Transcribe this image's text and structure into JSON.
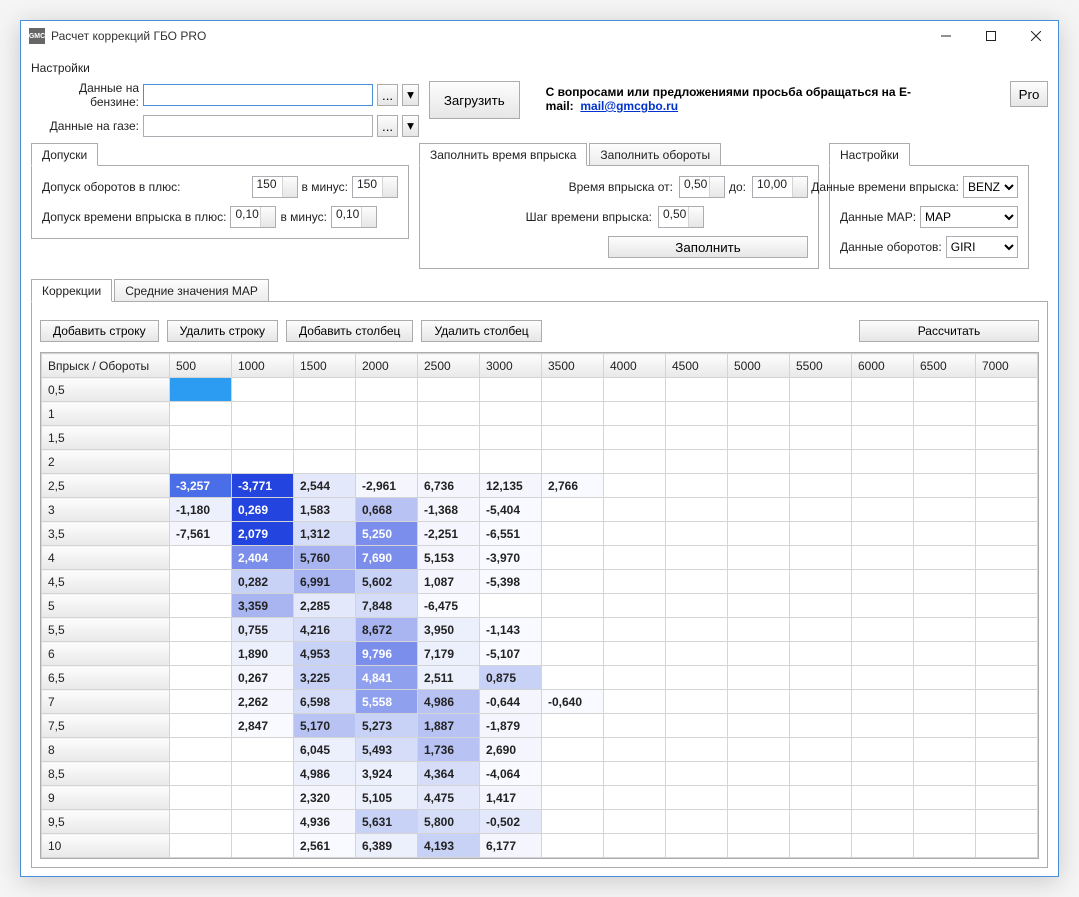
{
  "window": {
    "title": "Расчет коррекций ГБО PRO",
    "app_icon_text": "GMC"
  },
  "menu": {
    "settings": "Настройки"
  },
  "files": {
    "petrol_label": "Данные на бензине:",
    "gas_label": "Данные на газе:",
    "browse": "...",
    "load": "Загрузить"
  },
  "contact": {
    "text": "С вопросами или предложениями просьба обращаться на E-mail:",
    "email": "mail@gmcgbo.ru",
    "pro": "Pro"
  },
  "tolerance": {
    "tab": "Допуски",
    "rpm_plus_label": "Допуск оборотов в плюс:",
    "rpm_minus_label": "в минус:",
    "inj_plus_label": "Допуск времени впрыска в плюс:",
    "inj_minus_label": "в минус:",
    "rpm_plus": "150",
    "rpm_minus": "150",
    "inj_plus": "0,10",
    "inj_minus": "0,10"
  },
  "fill": {
    "tab1": "Заполнить время впрыска",
    "tab2": "Заполнить обороты",
    "from_label": "Время впрыска от:",
    "to_label": "до:",
    "step_label": "Шаг времени впрыска:",
    "from": "0,50",
    "to": "10,00",
    "step": "0,50",
    "button": "Заполнить"
  },
  "settings": {
    "tab": "Настройки",
    "inj_label": "Данные времени впрыска:",
    "map_label": "Данные MAP:",
    "rpm_label": "Данные оборотов:",
    "inj_value": "BENZ",
    "map_value": "MAP",
    "rpm_value": "GIRI"
  },
  "lower_tabs": {
    "corrections": "Коррекции",
    "map_avg": "Средние значения MAP"
  },
  "actions": {
    "add_row": "Добавить строку",
    "del_row": "Удалить строку",
    "add_col": "Добавить столбец",
    "del_col": "Удалить столбец",
    "calc": "Рассчитать"
  },
  "table": {
    "corner": "Впрыск / Обороты",
    "columns": [
      "500",
      "1000",
      "1500",
      "2000",
      "2500",
      "3000",
      "3500",
      "4000",
      "4500",
      "5000",
      "5500",
      "6000",
      "6500",
      "7000"
    ],
    "row_labels": [
      "0,5",
      "1",
      "1,5",
      "2",
      "2,5",
      "3",
      "3,5",
      "4",
      "4,5",
      "5",
      "5,5",
      "6",
      "6,5",
      "7",
      "7,5",
      "8",
      "8,5",
      "9",
      "9,5",
      "10"
    ],
    "selected_cell": {
      "row": 0,
      "col": 0
    },
    "cells": [
      [
        null,
        null,
        null,
        null,
        null,
        null,
        null,
        null,
        null,
        null,
        null,
        null,
        null,
        null
      ],
      [
        null,
        null,
        null,
        null,
        null,
        null,
        null,
        null,
        null,
        null,
        null,
        null,
        null,
        null
      ],
      [
        null,
        null,
        null,
        null,
        null,
        null,
        null,
        null,
        null,
        null,
        null,
        null,
        null,
        null
      ],
      [
        null,
        null,
        null,
        null,
        null,
        null,
        null,
        null,
        null,
        null,
        null,
        null,
        null,
        null
      ],
      [
        {
          "v": "-3,257",
          "c": "#4a6ee8",
          "t": "#fff"
        },
        {
          "v": "-3,771",
          "c": "#2444e0",
          "t": "#fff"
        },
        {
          "v": "2,544",
          "c": "#e4e8fb"
        },
        {
          "v": "-2,961",
          "c": "#f5f6fd"
        },
        {
          "v": "6,736",
          "c": "#f5f6fd"
        },
        {
          "v": "12,135",
          "c": "#f5f6fd"
        },
        {
          "v": "2,766",
          "c": "#f9faff"
        },
        null,
        null,
        null,
        null,
        null,
        null,
        null
      ],
      [
        {
          "v": "-1,180",
          "c": "#eceffc"
        },
        {
          "v": "0,269",
          "c": "#2444e0",
          "t": "#fff"
        },
        {
          "v": "1,583",
          "c": "#e4e8fb"
        },
        {
          "v": "0,668",
          "c": "#b8c3f3"
        },
        {
          "v": "-1,368",
          "c": "#f5f6fd"
        },
        {
          "v": "-5,404",
          "c": "#f9faff"
        },
        null,
        null,
        null,
        null,
        null,
        null,
        null,
        null
      ],
      [
        {
          "v": "-7,561",
          "c": "#f5f6fd"
        },
        {
          "v": "2,079",
          "c": "#2444e0",
          "t": "#fff"
        },
        {
          "v": "1,312",
          "c": "#d6ddf8"
        },
        {
          "v": "5,250",
          "c": "#7b8eec",
          "t": "#fff"
        },
        {
          "v": "-2,251",
          "c": "#f5f6fd"
        },
        {
          "v": "-6,551",
          "c": "#f9faff"
        },
        null,
        null,
        null,
        null,
        null,
        null,
        null,
        null
      ],
      [
        null,
        {
          "v": "2,404",
          "c": "#7b8eec",
          "t": "#fff"
        },
        {
          "v": "5,760",
          "c": "#a8b5f0"
        },
        {
          "v": "7,690",
          "c": "#7b8eec",
          "t": "#fff"
        },
        {
          "v": "5,153",
          "c": "#f5f6fd"
        },
        {
          "v": "-3,970",
          "c": "#f9faff"
        },
        null,
        null,
        null,
        null,
        null,
        null,
        null,
        null
      ],
      [
        null,
        {
          "v": "0,282",
          "c": "#c8d1f6"
        },
        {
          "v": "6,991",
          "c": "#a8b5f0"
        },
        {
          "v": "5,602",
          "c": "#c8d1f6"
        },
        {
          "v": "1,087",
          "c": "#f5f6fd"
        },
        {
          "v": "-5,398",
          "c": "#f9faff"
        },
        null,
        null,
        null,
        null,
        null,
        null,
        null,
        null
      ],
      [
        null,
        {
          "v": "3,359",
          "c": "#a8b5f0"
        },
        {
          "v": "2,285",
          "c": "#e4e8fb"
        },
        {
          "v": "7,848",
          "c": "#d6ddf8"
        },
        {
          "v": "-6,475",
          "c": "#f9faff"
        },
        null,
        null,
        null,
        null,
        null,
        null,
        null,
        null,
        null
      ],
      [
        null,
        {
          "v": "0,755",
          "c": "#e4e8fb"
        },
        {
          "v": "4,216",
          "c": "#d6ddf8"
        },
        {
          "v": "8,672",
          "c": "#a8b5f0"
        },
        {
          "v": "3,950",
          "c": "#eceffc"
        },
        {
          "v": "-1,143",
          "c": "#f9faff"
        },
        null,
        null,
        null,
        null,
        null,
        null,
        null,
        null
      ],
      [
        null,
        {
          "v": "1,890",
          "c": "#eceffc"
        },
        {
          "v": "4,953",
          "c": "#c8d1f6"
        },
        {
          "v": "9,796",
          "c": "#7b8eec",
          "t": "#fff"
        },
        {
          "v": "7,179",
          "c": "#eceffc"
        },
        {
          "v": "-5,107",
          "c": "#f9faff"
        },
        null,
        null,
        null,
        null,
        null,
        null,
        null,
        null
      ],
      [
        null,
        {
          "v": "0,267",
          "c": "#f5f6fd"
        },
        {
          "v": "3,225",
          "c": "#c8d1f6"
        },
        {
          "v": "4,841",
          "c": "#8ea0ee",
          "t": "#fff"
        },
        {
          "v": "2,511",
          "c": "#eceffc"
        },
        {
          "v": "0,875",
          "c": "#c8d1f6"
        },
        null,
        null,
        null,
        null,
        null,
        null,
        null,
        null
      ],
      [
        null,
        {
          "v": "2,262",
          "c": "#f5f6fd"
        },
        {
          "v": "6,598",
          "c": "#d6ddf8"
        },
        {
          "v": "5,558",
          "c": "#8ea0ee",
          "t": "#fff"
        },
        {
          "v": "4,986",
          "c": "#b8c3f3"
        },
        {
          "v": "-0,644",
          "c": "#f5f6fd"
        },
        {
          "v": "-0,640",
          "c": "#f9faff"
        },
        null,
        null,
        null,
        null,
        null,
        null,
        null
      ],
      [
        null,
        {
          "v": "2,847",
          "c": "#f9faff"
        },
        {
          "v": "5,170",
          "c": "#b8c3f3"
        },
        {
          "v": "5,273",
          "c": "#c8d1f6"
        },
        {
          "v": "1,887",
          "c": "#b8c3f3"
        },
        {
          "v": "-1,879",
          "c": "#f5f6fd"
        },
        null,
        null,
        null,
        null,
        null,
        null,
        null,
        null
      ],
      [
        null,
        null,
        {
          "v": "6,045",
          "c": "#eceffc"
        },
        {
          "v": "5,493",
          "c": "#d6ddf8"
        },
        {
          "v": "1,736",
          "c": "#b8c3f3"
        },
        {
          "v": "2,690",
          "c": "#f5f6fd"
        },
        null,
        null,
        null,
        null,
        null,
        null,
        null,
        null
      ],
      [
        null,
        null,
        {
          "v": "4,986",
          "c": "#eceffc"
        },
        {
          "v": "3,924",
          "c": "#eceffc"
        },
        {
          "v": "4,364",
          "c": "#d6ddf8"
        },
        {
          "v": "-4,064",
          "c": "#f9faff"
        },
        null,
        null,
        null,
        null,
        null,
        null,
        null,
        null
      ],
      [
        null,
        null,
        {
          "v": "2,320",
          "c": "#f5f6fd"
        },
        {
          "v": "5,105",
          "c": "#eceffc"
        },
        {
          "v": "4,475",
          "c": "#e4e8fb"
        },
        {
          "v": "1,417",
          "c": "#f5f6fd"
        },
        null,
        null,
        null,
        null,
        null,
        null,
        null,
        null
      ],
      [
        null,
        null,
        {
          "v": "4,936",
          "c": "#f5f6fd"
        },
        {
          "v": "5,631",
          "c": "#c8d1f6"
        },
        {
          "v": "5,800",
          "c": "#d6ddf8"
        },
        {
          "v": "-0,502",
          "c": "#e4e8fb"
        },
        null,
        null,
        null,
        null,
        null,
        null,
        null,
        null
      ],
      [
        null,
        null,
        {
          "v": "2,561",
          "c": "#f9faff"
        },
        {
          "v": "6,389",
          "c": "#eceffc"
        },
        {
          "v": "4,193",
          "c": "#c8d1f6"
        },
        {
          "v": "6,177",
          "c": "#f5f6fd"
        },
        null,
        null,
        null,
        null,
        null,
        null,
        null,
        null
      ]
    ]
  }
}
